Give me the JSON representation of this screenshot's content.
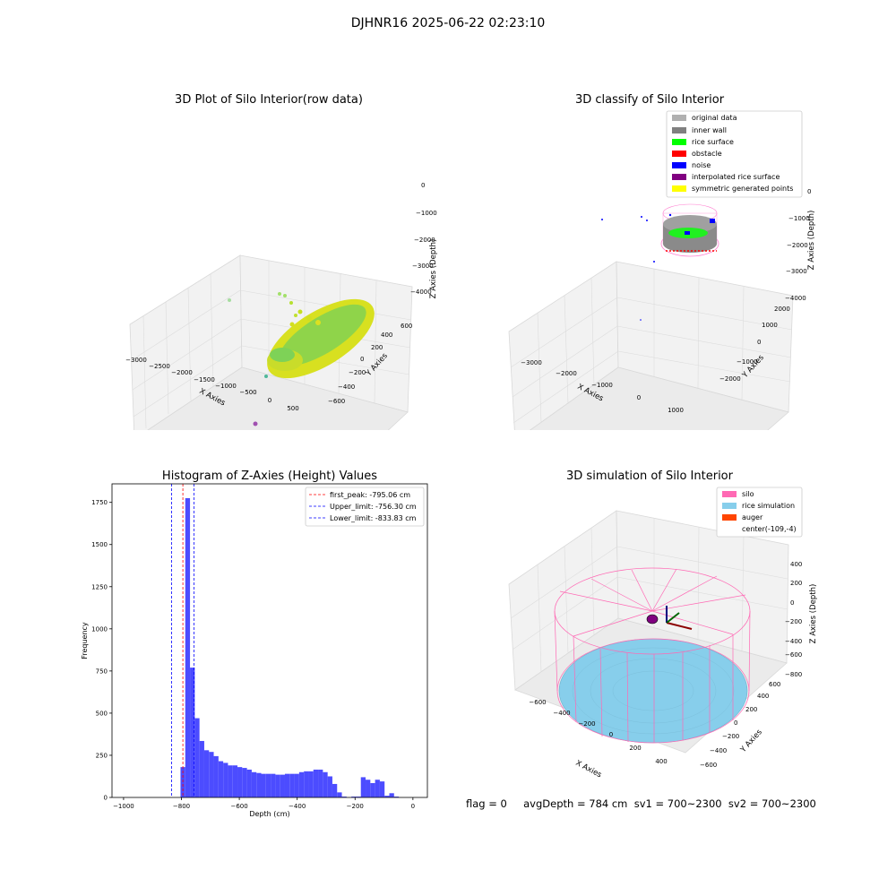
{
  "suptitle": "DJHNR16 2025-06-22 02:23:10",
  "panels": {
    "raw": {
      "title": "3D Plot of Silo Interior(row data)",
      "xlabel": "X Axies",
      "ylabel": "Y Axies",
      "zlabel": "Z Axies (Depth)",
      "xticks": [
        "−3000",
        "−2500",
        "−2000",
        "−1500",
        "−1000",
        "−500",
        "0",
        "500"
      ],
      "yticks": [
        "−600",
        "−400",
        "−200",
        "0",
        "200",
        "400",
        "600"
      ],
      "zticks": [
        "0",
        "−1000",
        "−2000",
        "−3000",
        "−4000"
      ]
    },
    "classify": {
      "title": "3D classify of Silo Interior",
      "xlabel": "X Axies",
      "ylabel": "Y Axies",
      "zlabel": "Z Axies (Depth)",
      "xticks": [
        "−3000",
        "−2000",
        "−1000",
        "0",
        "1000"
      ],
      "yticks": [
        "−2000",
        "−1000",
        "0",
        "1000",
        "2000"
      ],
      "zticks": [
        "0",
        "−1000",
        "−2000",
        "−3000",
        "−4000"
      ],
      "legend": [
        {
          "label": "original data",
          "color": "#b0b0b0"
        },
        {
          "label": "inner wall",
          "color": "#808080"
        },
        {
          "label": "rice surface",
          "color": "#00ff00"
        },
        {
          "label": "obstacle",
          "color": "#ff0000"
        },
        {
          "label": "noise",
          "color": "#0000ff"
        },
        {
          "label": "interpolated rice surface",
          "color": "#800080"
        },
        {
          "label": "symmetric generated points",
          "color": "#ffff00"
        }
      ]
    },
    "simulation": {
      "title": "3D simulation of Silo Interior",
      "xlabel": "X Axies",
      "ylabel": "Y Axies",
      "zlabel": "Z Axies (Depth)",
      "xticks": [
        "−600",
        "−400",
        "−200",
        "0",
        "200",
        "400"
      ],
      "yticks": [
        "−600",
        "−400",
        "−200",
        "0",
        "200",
        "400",
        "600"
      ],
      "zticks": [
        "400",
        "200",
        "0",
        "−200",
        "−400",
        "−600",
        "−800"
      ],
      "legend": [
        {
          "label": "silo",
          "color": "#ff69b4"
        },
        {
          "label": "rice simulation",
          "color": "#87ceeb"
        },
        {
          "label": "auger",
          "color": "#ff4500"
        },
        {
          "label": "center(-109,-4)",
          "color": ""
        }
      ]
    }
  },
  "chart_data": {
    "type": "bar",
    "title": "Histogram of Z-Axies (Height) Values",
    "xlabel": "Depth (cm)",
    "ylabel": "Frequency",
    "xlim": [
      -1040,
      50
    ],
    "ylim": [
      0,
      1860
    ],
    "xticks": [
      -1000,
      -800,
      -600,
      -400,
      -200,
      0
    ],
    "yticks": [
      0,
      250,
      500,
      750,
      1000,
      1250,
      1500,
      1750
    ],
    "bin_width": 16.4,
    "bin_start": -836,
    "values": [
      0,
      0,
      180,
      1775,
      770,
      470,
      335,
      280,
      270,
      245,
      215,
      205,
      190,
      190,
      180,
      175,
      165,
      150,
      145,
      140,
      140,
      140,
      135,
      135,
      140,
      140,
      140,
      150,
      155,
      155,
      165,
      165,
      150,
      125,
      80,
      30,
      5,
      0,
      5,
      5,
      120,
      105,
      85,
      105,
      95,
      10,
      25,
      5
    ],
    "lines": [
      {
        "label": "first_peak: -795.06 cm",
        "x": -795.06,
        "color": "#ff0000"
      },
      {
        "label": "Upper_limit: -756.30 cm",
        "x": -756.3,
        "color": "#0000ff"
      },
      {
        "label": "Lower_limit: -833.83 cm",
        "x": -833.83,
        "color": "#0000ff"
      }
    ],
    "legend_position": "top-right",
    "grid": false
  },
  "footer": "flag = 0     avgDepth = 784 cm  sv1 = 700~2300  sv2 = 700~2300"
}
